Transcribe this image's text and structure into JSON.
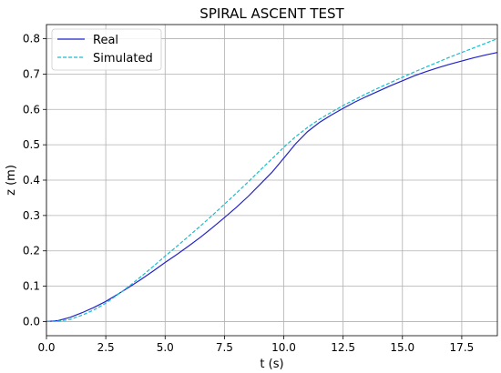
{
  "chart_data": {
    "type": "line",
    "title": "SPIRAL ASCENT TEST",
    "xlabel": "t (s)",
    "ylabel": "z (m)",
    "xlim": [
      0,
      19
    ],
    "ylim": [
      -0.04,
      0.84
    ],
    "xticks": [
      0.0,
      2.5,
      5.0,
      7.5,
      10.0,
      12.5,
      15.0,
      17.5
    ],
    "xtick_labels": [
      "0.0",
      "2.5",
      "5.0",
      "7.5",
      "10.0",
      "12.5",
      "15.0",
      "17.5"
    ],
    "yticks": [
      0.0,
      0.1,
      0.2,
      0.3,
      0.4,
      0.5,
      0.6,
      0.7,
      0.8
    ],
    "ytick_labels": [
      "0.0",
      "0.1",
      "0.2",
      "0.3",
      "0.4",
      "0.5",
      "0.6",
      "0.7",
      "0.8"
    ],
    "grid": true,
    "legend_position": "top-left",
    "series": [
      {
        "name": "Real",
        "color": "#2222cc",
        "style": "solid",
        "x": [
          0,
          0.5,
          1.0,
          1.5,
          2.0,
          2.5,
          3.0,
          3.5,
          4.0,
          4.5,
          5.0,
          5.5,
          6.0,
          6.5,
          7.0,
          7.5,
          8.0,
          8.5,
          9.0,
          9.5,
          10.0,
          10.5,
          11.0,
          11.5,
          12.0,
          12.5,
          13.0,
          13.5,
          14.0,
          14.5,
          15.0,
          15.5,
          16.0,
          16.5,
          17.0,
          17.5,
          18.0,
          18.5,
          19.0
        ],
        "y": [
          0.0,
          0.003,
          0.012,
          0.025,
          0.04,
          0.057,
          0.077,
          0.098,
          0.12,
          0.143,
          0.167,
          0.19,
          0.214,
          0.239,
          0.266,
          0.294,
          0.323,
          0.354,
          0.388,
          0.422,
          0.462,
          0.503,
          0.537,
          0.563,
          0.584,
          0.603,
          0.621,
          0.637,
          0.652,
          0.667,
          0.681,
          0.695,
          0.707,
          0.718,
          0.728,
          0.737,
          0.746,
          0.754,
          0.761
        ]
      },
      {
        "name": "Simulated",
        "color": "#17becf",
        "style": "dashed",
        "x": [
          0,
          0.5,
          1.0,
          1.5,
          2.0,
          2.5,
          3.0,
          3.5,
          4.0,
          4.5,
          5.0,
          5.5,
          6.0,
          6.5,
          7.0,
          7.5,
          8.0,
          8.5,
          9.0,
          9.5,
          10.0,
          10.5,
          11.0,
          11.5,
          12.0,
          12.5,
          13.0,
          13.5,
          14.0,
          14.5,
          15.0,
          15.5,
          16.0,
          16.5,
          17.0,
          17.5,
          18.0,
          18.5,
          19.0
        ],
        "y": [
          0.0,
          0.001,
          0.006,
          0.018,
          0.033,
          0.052,
          0.076,
          0.101,
          0.128,
          0.156,
          0.185,
          0.213,
          0.242,
          0.271,
          0.301,
          0.332,
          0.363,
          0.395,
          0.428,
          0.46,
          0.493,
          0.523,
          0.549,
          0.572,
          0.592,
          0.611,
          0.628,
          0.645,
          0.661,
          0.676,
          0.691,
          0.706,
          0.72,
          0.734,
          0.748,
          0.761,
          0.774,
          0.787,
          0.8
        ]
      }
    ]
  }
}
